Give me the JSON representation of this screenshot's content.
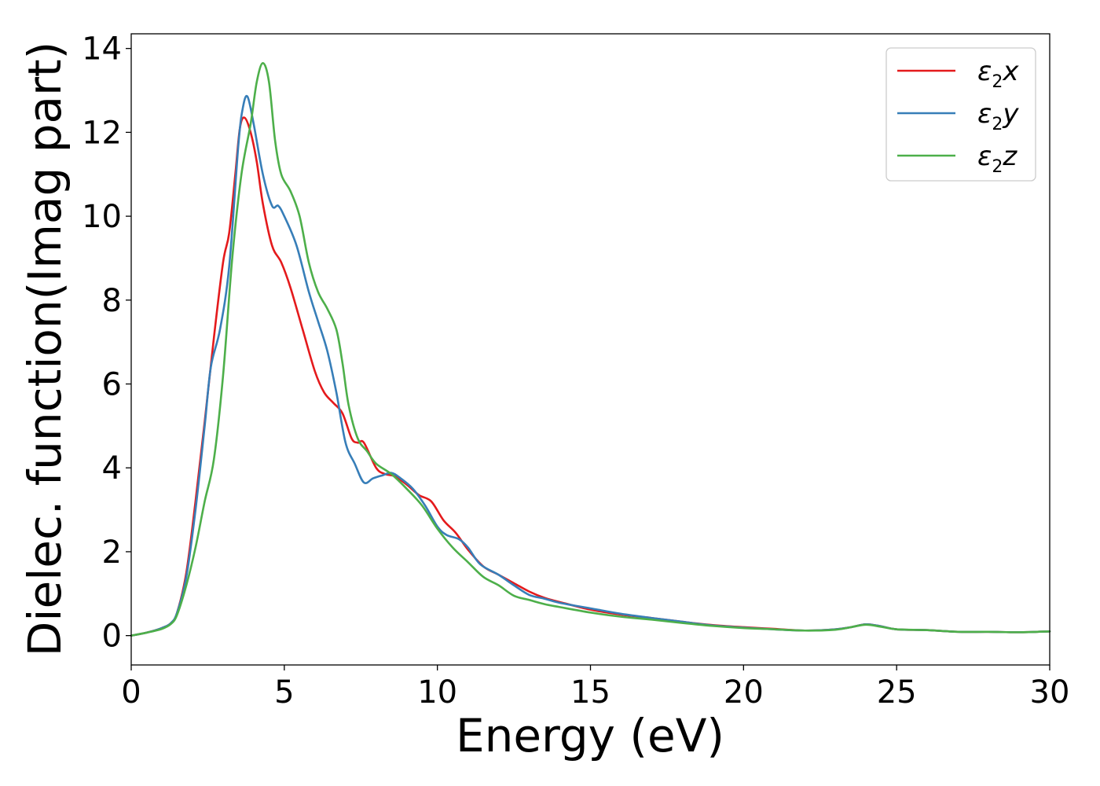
{
  "chart_data": {
    "type": "line",
    "xlabel": "Energy (eV)",
    "ylabel": "Dielec. function(Imag part)",
    "xlim": [
      0,
      30
    ],
    "ylim": [
      -0.7,
      14.35
    ],
    "xticks": [
      0,
      5,
      10,
      15,
      20,
      25,
      30
    ],
    "yticks": [
      0,
      2,
      4,
      6,
      8,
      10,
      12,
      14
    ],
    "grid": false,
    "legend_position": "top-right",
    "series": [
      {
        "name": "ε₂x",
        "legend": {
          "base": "ε",
          "sub": "2",
          "suffix": "x"
        },
        "color": "#e41a1c",
        "points": [
          [
            0,
            0
          ],
          [
            0.5,
            0.07
          ],
          [
            1.0,
            0.18
          ],
          [
            1.3,
            0.3
          ],
          [
            1.5,
            0.55
          ],
          [
            1.8,
            1.5
          ],
          [
            2.1,
            3.2
          ],
          [
            2.4,
            5.1
          ],
          [
            2.7,
            7.1
          ],
          [
            3.0,
            8.9
          ],
          [
            3.2,
            9.6
          ],
          [
            3.4,
            11.0
          ],
          [
            3.55,
            12.1
          ],
          [
            3.7,
            12.35
          ],
          [
            3.9,
            12.0
          ],
          [
            4.1,
            11.3
          ],
          [
            4.3,
            10.3
          ],
          [
            4.6,
            9.3
          ],
          [
            4.9,
            8.9
          ],
          [
            5.2,
            8.3
          ],
          [
            5.6,
            7.3
          ],
          [
            6.0,
            6.3
          ],
          [
            6.3,
            5.8
          ],
          [
            6.6,
            5.55
          ],
          [
            6.9,
            5.3
          ],
          [
            7.2,
            4.7
          ],
          [
            7.4,
            4.6
          ],
          [
            7.6,
            4.6
          ],
          [
            8.0,
            4.0
          ],
          [
            8.3,
            3.85
          ],
          [
            8.6,
            3.8
          ],
          [
            9.0,
            3.6
          ],
          [
            9.4,
            3.35
          ],
          [
            9.8,
            3.2
          ],
          [
            10.2,
            2.75
          ],
          [
            10.6,
            2.45
          ],
          [
            11.0,
            2.05
          ],
          [
            11.5,
            1.65
          ],
          [
            12.0,
            1.45
          ],
          [
            12.5,
            1.25
          ],
          [
            13.0,
            1.05
          ],
          [
            13.5,
            0.9
          ],
          [
            14.0,
            0.8
          ],
          [
            15.0,
            0.62
          ],
          [
            16.0,
            0.5
          ],
          [
            17.0,
            0.42
          ],
          [
            18.0,
            0.33
          ],
          [
            19.0,
            0.25
          ],
          [
            20.0,
            0.2
          ],
          [
            21.0,
            0.16
          ],
          [
            22.0,
            0.12
          ],
          [
            23.0,
            0.15
          ],
          [
            23.5,
            0.2
          ],
          [
            24.0,
            0.27
          ],
          [
            24.5,
            0.22
          ],
          [
            25.0,
            0.15
          ],
          [
            26.0,
            0.13
          ],
          [
            27.0,
            0.09
          ],
          [
            28.0,
            0.09
          ],
          [
            29.0,
            0.08
          ],
          [
            30.0,
            0.1
          ]
        ]
      },
      {
        "name": "ε₂y",
        "legend": {
          "base": "ε",
          "sub": "2",
          "suffix": "y"
        },
        "color": "#377eb8",
        "points": [
          [
            0,
            0
          ],
          [
            0.5,
            0.07
          ],
          [
            1.0,
            0.18
          ],
          [
            1.3,
            0.3
          ],
          [
            1.5,
            0.55
          ],
          [
            1.8,
            1.4
          ],
          [
            2.1,
            3.0
          ],
          [
            2.4,
            5.0
          ],
          [
            2.6,
            6.4
          ],
          [
            2.9,
            7.3
          ],
          [
            3.2,
            8.8
          ],
          [
            3.5,
            11.7
          ],
          [
            3.65,
            12.6
          ],
          [
            3.8,
            12.85
          ],
          [
            4.0,
            12.2
          ],
          [
            4.3,
            11.0
          ],
          [
            4.6,
            10.25
          ],
          [
            4.8,
            10.25
          ],
          [
            5.0,
            10.0
          ],
          [
            5.4,
            9.3
          ],
          [
            5.8,
            8.2
          ],
          [
            6.1,
            7.5
          ],
          [
            6.4,
            6.8
          ],
          [
            6.7,
            5.8
          ],
          [
            7.0,
            4.6
          ],
          [
            7.3,
            4.1
          ],
          [
            7.6,
            3.65
          ],
          [
            7.9,
            3.75
          ],
          [
            8.2,
            3.82
          ],
          [
            8.5,
            3.88
          ],
          [
            8.8,
            3.75
          ],
          [
            9.2,
            3.5
          ],
          [
            9.6,
            3.1
          ],
          [
            10.0,
            2.6
          ],
          [
            10.3,
            2.4
          ],
          [
            10.7,
            2.3
          ],
          [
            11.0,
            2.1
          ],
          [
            11.4,
            1.7
          ],
          [
            12.0,
            1.45
          ],
          [
            12.5,
            1.2
          ],
          [
            13.0,
            0.97
          ],
          [
            13.5,
            0.88
          ],
          [
            14.0,
            0.78
          ],
          [
            15.0,
            0.65
          ],
          [
            16.0,
            0.52
          ],
          [
            17.0,
            0.42
          ],
          [
            18.0,
            0.33
          ],
          [
            19.0,
            0.24
          ],
          [
            20.0,
            0.19
          ],
          [
            21.0,
            0.15
          ],
          [
            22.0,
            0.12
          ],
          [
            23.0,
            0.15
          ],
          [
            23.5,
            0.2
          ],
          [
            24.0,
            0.27
          ],
          [
            24.5,
            0.22
          ],
          [
            25.0,
            0.15
          ],
          [
            26.0,
            0.13
          ],
          [
            27.0,
            0.09
          ],
          [
            28.0,
            0.09
          ],
          [
            29.0,
            0.08
          ],
          [
            30.0,
            0.1
          ]
        ]
      },
      {
        "name": "ε₂z",
        "legend": {
          "base": "ε",
          "sub": "2",
          "suffix": "z"
        },
        "color": "#4daf4a",
        "points": [
          [
            0,
            0
          ],
          [
            0.5,
            0.07
          ],
          [
            1.0,
            0.16
          ],
          [
            1.3,
            0.28
          ],
          [
            1.5,
            0.5
          ],
          [
            1.8,
            1.2
          ],
          [
            2.1,
            2.1
          ],
          [
            2.4,
            3.2
          ],
          [
            2.7,
            4.2
          ],
          [
            3.0,
            6.2
          ],
          [
            3.3,
            9.0
          ],
          [
            3.6,
            11.0
          ],
          [
            3.9,
            12.2
          ],
          [
            4.1,
            13.2
          ],
          [
            4.3,
            13.65
          ],
          [
            4.5,
            13.2
          ],
          [
            4.7,
            11.8
          ],
          [
            4.9,
            11.0
          ],
          [
            5.2,
            10.6
          ],
          [
            5.5,
            10.0
          ],
          [
            5.8,
            8.9
          ],
          [
            6.1,
            8.2
          ],
          [
            6.4,
            7.8
          ],
          [
            6.7,
            7.3
          ],
          [
            6.9,
            6.5
          ],
          [
            7.1,
            5.5
          ],
          [
            7.4,
            4.7
          ],
          [
            7.7,
            4.4
          ],
          [
            8.0,
            4.1
          ],
          [
            8.5,
            3.85
          ],
          [
            9.0,
            3.5
          ],
          [
            9.5,
            3.1
          ],
          [
            10.0,
            2.55
          ],
          [
            10.5,
            2.1
          ],
          [
            11.0,
            1.75
          ],
          [
            11.5,
            1.4
          ],
          [
            12.0,
            1.2
          ],
          [
            12.5,
            0.95
          ],
          [
            13.0,
            0.85
          ],
          [
            13.5,
            0.75
          ],
          [
            14.0,
            0.68
          ],
          [
            15.0,
            0.55
          ],
          [
            16.0,
            0.45
          ],
          [
            17.0,
            0.38
          ],
          [
            18.0,
            0.3
          ],
          [
            19.0,
            0.23
          ],
          [
            20.0,
            0.18
          ],
          [
            21.0,
            0.15
          ],
          [
            22.0,
            0.12
          ],
          [
            23.0,
            0.14
          ],
          [
            23.5,
            0.2
          ],
          [
            24.0,
            0.26
          ],
          [
            24.5,
            0.21
          ],
          [
            25.0,
            0.15
          ],
          [
            26.0,
            0.13
          ],
          [
            27.0,
            0.09
          ],
          [
            28.0,
            0.09
          ],
          [
            29.0,
            0.08
          ],
          [
            30.0,
            0.1
          ]
        ]
      }
    ]
  }
}
